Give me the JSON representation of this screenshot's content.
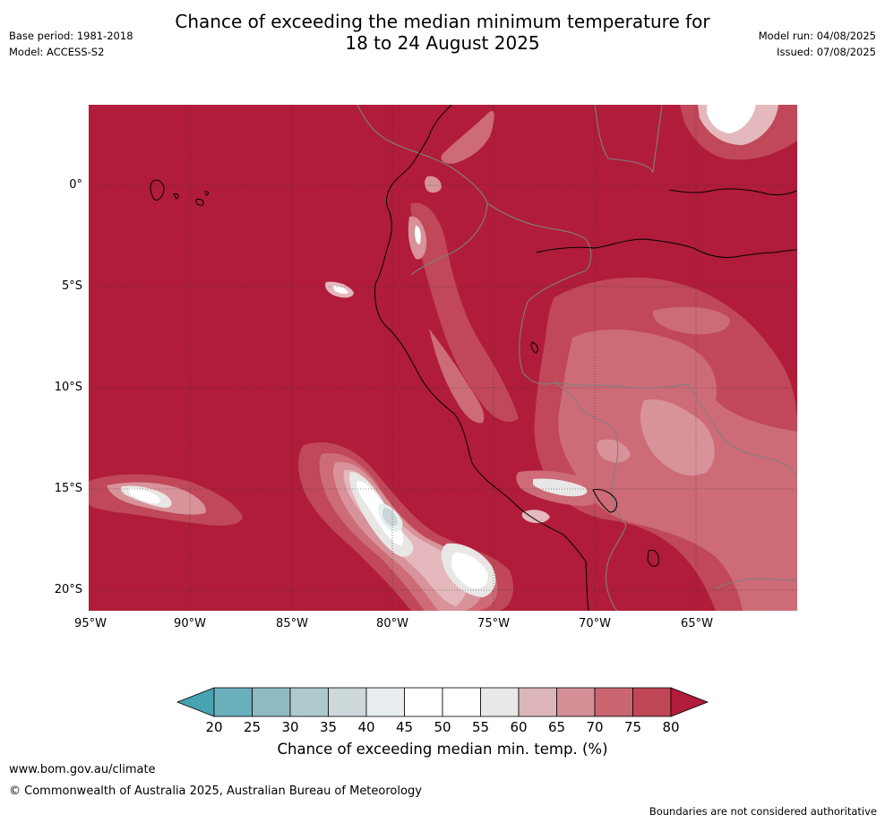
{
  "header": {
    "title_line1": "Chance of exceeding the median minimum temperature for",
    "title_line2": "18 to 24 August 2025",
    "base_period": "Base period: 1981-2018",
    "model": "Model: ACCESS-S2",
    "model_run": "Model run: 04/08/2025",
    "issued": "Issued: 07/08/2025"
  },
  "map": {
    "lat_labels": [
      "0°",
      "5°S",
      "10°S",
      "15°S",
      "20°S"
    ],
    "lon_labels": [
      "95°W",
      "90°W",
      "85°W",
      "80°W",
      "75°W",
      "70°W",
      "65°W"
    ],
    "colors": {
      "p80": "#b01c3a",
      "p75": "#c04858",
      "p70": "#cd6b77",
      "p65": "#d8929a",
      "p60": "#e4b8bc",
      "p55": "#e9e7e6",
      "p50": "#ffffff",
      "p40": "#e7eef0",
      "p35": "#cbd6d9",
      "coast": "#000000",
      "border": "#808080"
    }
  },
  "legend": {
    "title": "Chance of exceeding median min. temp. (%)",
    "ticks": [
      "20",
      "25",
      "30",
      "35",
      "40",
      "45",
      "50",
      "55",
      "60",
      "65",
      "70",
      "75",
      "80"
    ],
    "colors": [
      "#48a3b1",
      "#6aafbb",
      "#8ebac3",
      "#adc9cd",
      "#ccd8da",
      "#e8eef0",
      "#ffffff",
      "#ffffff",
      "#e9e8e7",
      "#dcb6ba",
      "#d48f97",
      "#c96670",
      "#bf4654",
      "#b01c3a"
    ]
  },
  "footer": {
    "website": "www.bom.gov.au/climate",
    "copyright": "© Commonwealth of Australia 2025, Australian Bureau of Meteorology",
    "disclaimer": "Boundaries are not considered authoritative"
  }
}
